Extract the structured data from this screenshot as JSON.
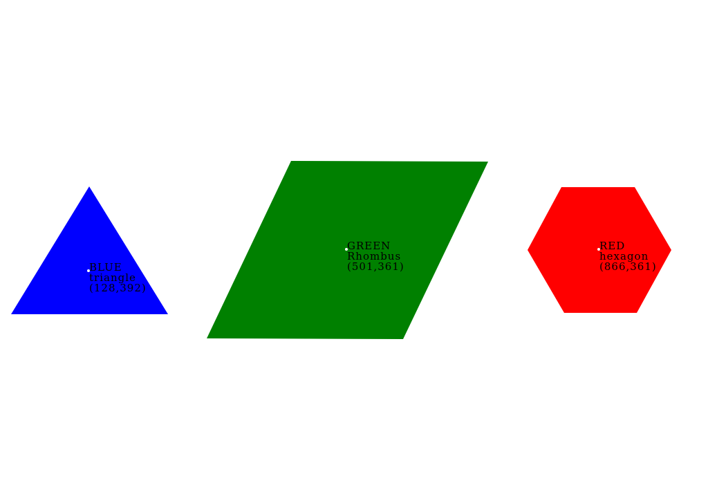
{
  "shapes": [
    {
      "id": "triangle",
      "color_name": "BLUE",
      "shape_name": "triangle",
      "coords_text": "(128,392)",
      "fill": "#0000ff"
    },
    {
      "id": "rhombus",
      "color_name": "GREEN",
      "shape_name": "Rhombus",
      "coords_text": "(501,361)",
      "fill": "#008000"
    },
    {
      "id": "hexagon",
      "color_name": "RED",
      "shape_name": "hexagon",
      "coords_text": "(866,361)",
      "fill": "#ff0000"
    }
  ]
}
